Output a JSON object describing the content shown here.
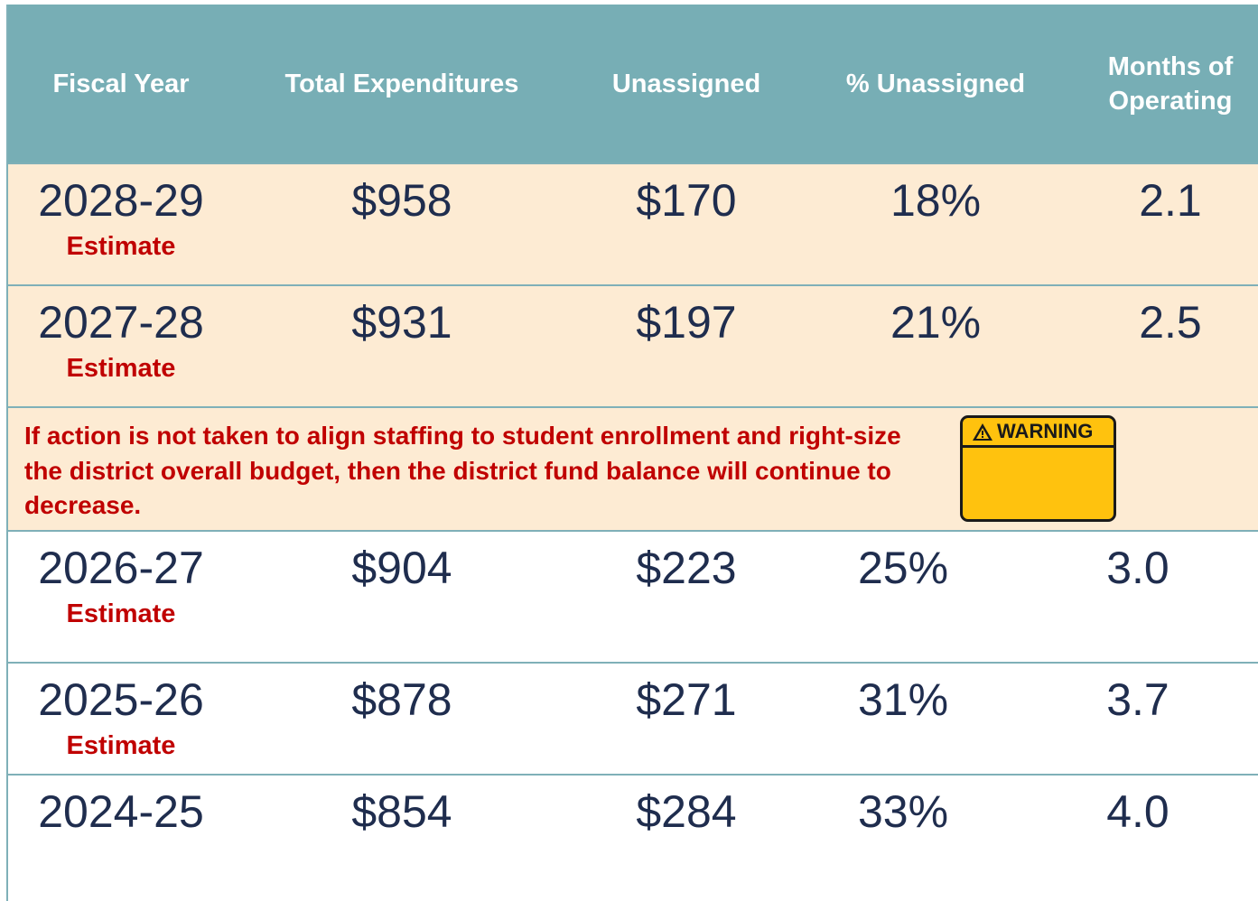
{
  "header": [
    "Fiscal Year",
    "Total Expenditures",
    "Unassigned",
    "% Unassigned",
    "Months of Operating"
  ],
  "rows": [
    {
      "year": "2028-29",
      "note": "Estimate",
      "expenditures": "$958",
      "unassigned": "$170",
      "percent": "18%",
      "months": "2.1"
    },
    {
      "year": "2027-28",
      "note": "Estimate",
      "expenditures": "$931",
      "unassigned": "$197",
      "percent": "21%",
      "months": "2.5"
    },
    {
      "year": "2026-27",
      "note": "Estimate",
      "expenditures": "$904",
      "unassigned": "$223",
      "percent": "25%",
      "months": "3.0"
    },
    {
      "year": "2025-26",
      "note": "Estimate",
      "expenditures": "$878",
      "unassigned": "$271",
      "percent": "31%",
      "months": "3.7"
    },
    {
      "year": "2024-25",
      "expenditures": "$854",
      "unassigned": "$284",
      "percent": "33%",
      "months": "4.0"
    }
  ],
  "warning": {
    "text": "If action is not taken to align staffing to student enrollment and right-size the district overall budget, then the district fund balance will continue to decrease.",
    "label": "WARNING"
  }
}
